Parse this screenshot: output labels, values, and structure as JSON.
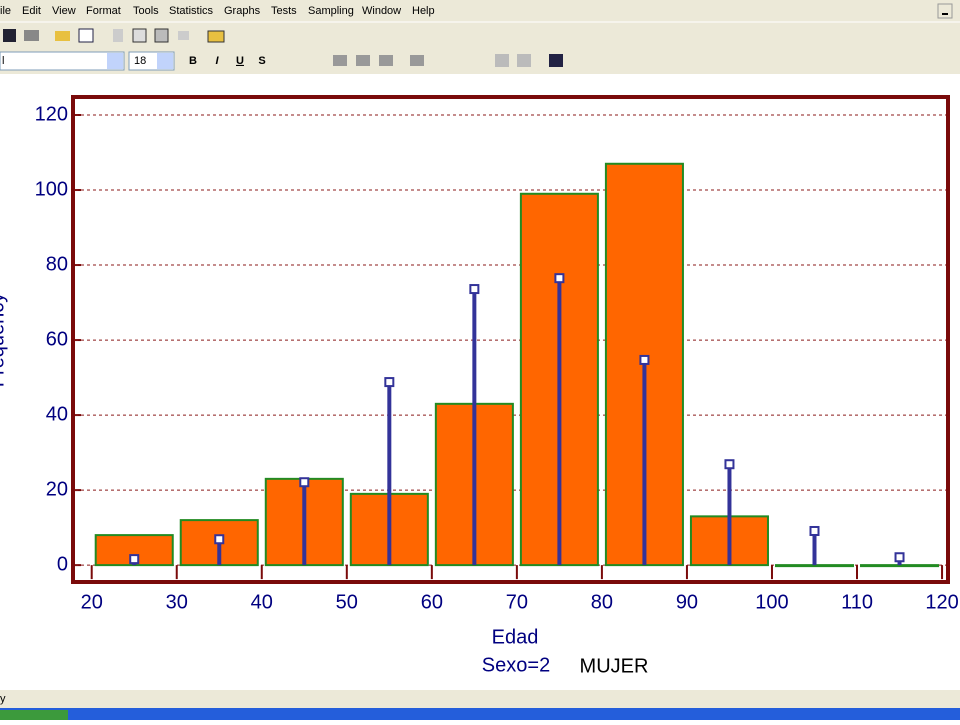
{
  "menu": [
    "ile",
    "Edit",
    "View",
    "Format",
    "Tools",
    "Statistics",
    "Graphs",
    "Tests",
    "Sampling",
    "Window",
    "Help"
  ],
  "toolbar": {
    "font": "l",
    "size": "18",
    "format_buttons": [
      "B",
      "I",
      "U",
      "S"
    ]
  },
  "status": "y",
  "chart_data": {
    "type": "histogram",
    "y_label": "Frequency",
    "x_label": "Edad",
    "captions": [
      "Sexo=2",
      "MUJER"
    ],
    "bins": [
      20,
      30,
      40,
      50,
      60,
      70,
      80,
      90,
      100,
      110,
      120
    ],
    "series": [
      {
        "color": "#ff6600",
        "values": [
          8,
          12,
          23,
          19,
          43,
          99,
          107,
          13,
          0,
          0
        ]
      },
      {
        "color": "#333399",
        "values": [
          1.6,
          6.9,
          22.1,
          48.8,
          73.6,
          76.5,
          54.7,
          26.9,
          9.1,
          2.1
        ]
      }
    ],
    "xlim": [
      17.8,
      120.7
    ],
    "ylim": [
      -4.5,
      124.8
    ],
    "xticks": [
      20,
      30,
      40,
      50,
      60,
      70,
      80,
      90,
      100,
      110,
      120
    ],
    "yticks": [
      0,
      20,
      40,
      60,
      80,
      100,
      120
    ],
    "grid": true
  }
}
